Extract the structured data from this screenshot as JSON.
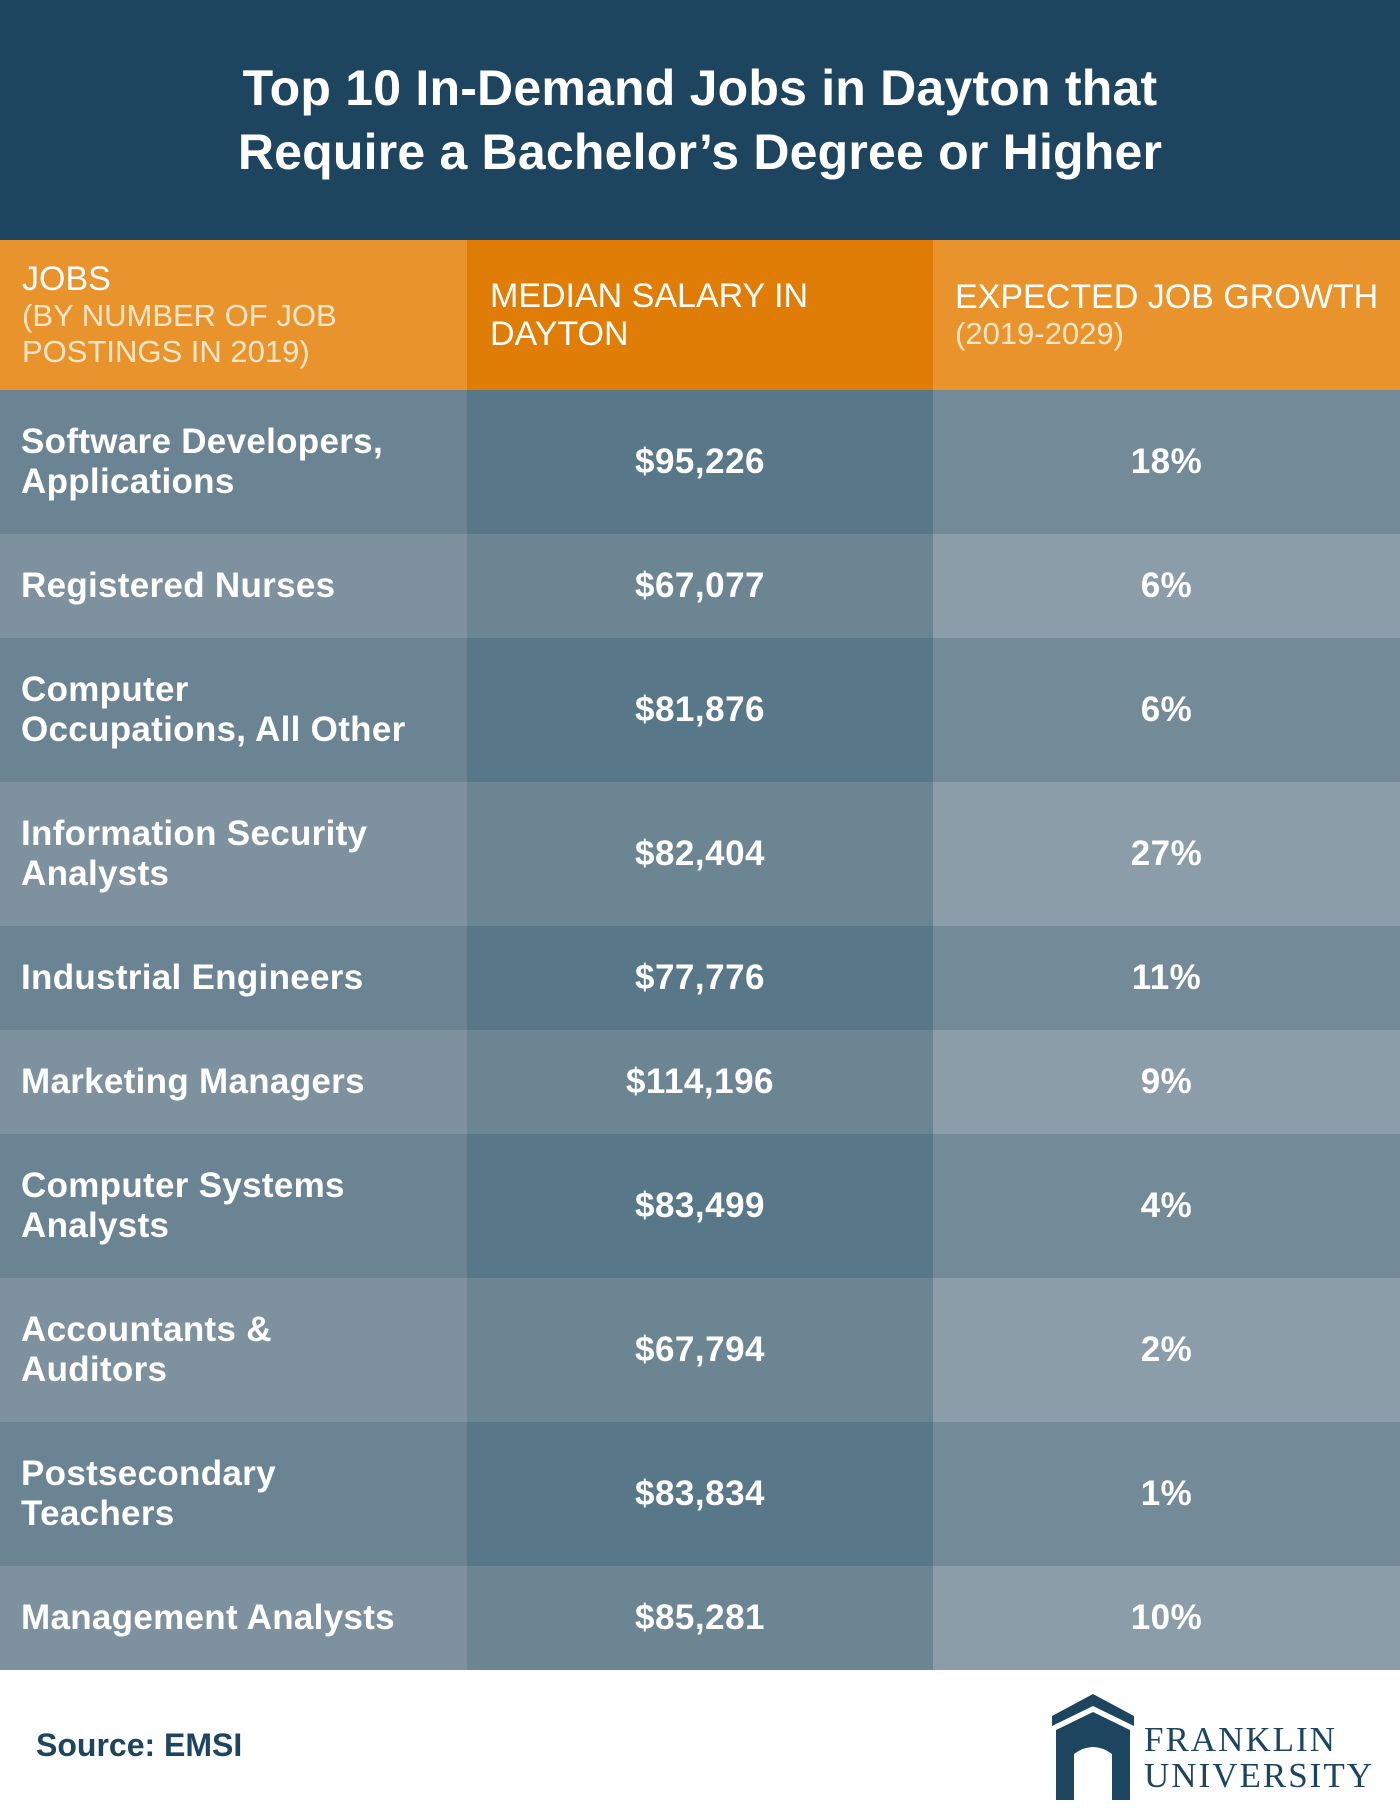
{
  "title": {
    "line1": "Top 10 In-Demand Jobs in Dayton that",
    "line2": "Require a Bachelor’s Degree or Higher"
  },
  "chart_data": {
    "type": "table",
    "columns": [
      {
        "label": "JOBS",
        "sublabel_line1": "(BY NUMBER OF JOB",
        "sublabel_line2": "POSTINGS IN 2019)"
      },
      {
        "label_line1": "MEDIAN SALARY IN",
        "label_line2": "DAYTON"
      },
      {
        "label": "EXPECTED JOB GROWTH",
        "sublabel": "(2019-2029)"
      }
    ],
    "rows": [
      {
        "job_line1": "Software Developers,",
        "job_line2": "Applications",
        "salary": "$95,226",
        "growth": "18%"
      },
      {
        "job_line1": "Registered Nurses",
        "job_line2": "",
        "salary": "$67,077",
        "growth": "6%"
      },
      {
        "job_line1": "Computer",
        "job_line2": "Occupations, All Other",
        "salary": "$81,876",
        "growth": "6%"
      },
      {
        "job_line1": "Information Security",
        "job_line2": "Analysts",
        "salary": "$82,404",
        "growth": "27%"
      },
      {
        "job_line1": "Industrial Engineers",
        "job_line2": "",
        "salary": "$77,776",
        "growth": "11%"
      },
      {
        "job_line1": "Marketing Managers",
        "job_line2": "",
        "salary": "$114,196",
        "growth": "9%"
      },
      {
        "job_line1": "Computer Systems",
        "job_line2": "Analysts",
        "salary": "$83,499",
        "growth": "4%"
      },
      {
        "job_line1": "Accountants &",
        "job_line2": "Auditors",
        "salary": "$67,794",
        "growth": "2%"
      },
      {
        "job_line1": "Postsecondary",
        "job_line2": "Teachers",
        "salary": "$83,834",
        "growth": "1%"
      },
      {
        "job_line1": "Management Analysts",
        "job_line2": "",
        "salary": "$85,281",
        "growth": "10%"
      }
    ]
  },
  "footer": {
    "source": "Source: EMSI",
    "logo_line1": "FRANKLIN",
    "logo_line2": "UNIVERSITY"
  },
  "colors": {
    "navy": "#1e4560",
    "orange_light": "#e9932c",
    "orange_dark": "#e07d06",
    "slate_dark": "#587789",
    "slate_mid": "#6b8494",
    "slate_light": "#8a9da8"
  },
  "icons": {
    "logo": "franklin-arch-logo"
  }
}
